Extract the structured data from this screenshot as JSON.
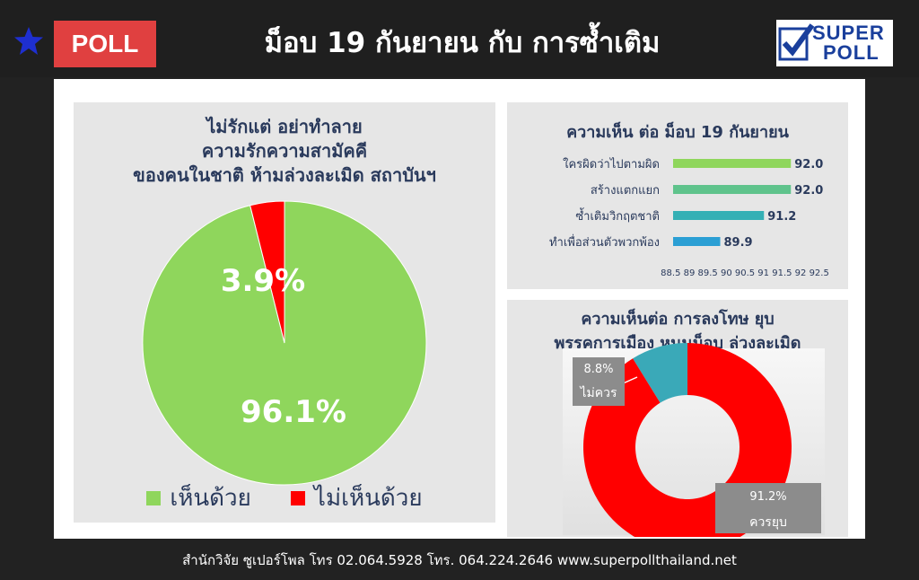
{
  "header": {
    "badge": "POLL",
    "title": "ม็อบ 19 กันยายน กับ การซ้ำเติม",
    "logo_line1": "SUPER",
    "logo_line2": "POLL"
  },
  "colors": {
    "green": "#8fd65c",
    "red": "#ff0000",
    "bar_green_light": "#8fd65c",
    "bar_green": "#5fc38c",
    "bar_teal": "#35b0b5",
    "bar_blue": "#2b9fd4",
    "donut_teal": "#3aa9b8"
  },
  "chart_data": [
    {
      "type": "pie",
      "title_lines": [
        "ไม่รักแต่ อย่าทำลาย",
        "ความรักความสามัคคี",
        "ของคนในชาติ ห้ามล่วงละเมิด สถาบันฯ"
      ],
      "categories": [
        "เห็นด้วย",
        "ไม่เห็นด้วย"
      ],
      "values": [
        96.1,
        3.9
      ],
      "labels": [
        "96.1%",
        "3.9%"
      ],
      "legend": "bottom"
    },
    {
      "type": "bar",
      "orientation": "horizontal",
      "title": "ความเห็น ต่อ ม็อบ 19 กันยายน",
      "categories": [
        "ใครผิดว่าไปตามผิด",
        "สร้างแตกแยก",
        "ซ้ำเติมวิกฤตชาติ",
        "ทำเพื่อส่วนตัวพวกพ้อง"
      ],
      "values": [
        92.0,
        92.0,
        91.2,
        89.9
      ],
      "value_labels": [
        "92.0",
        "92.0",
        "91.2",
        "89.9"
      ],
      "xlim": [
        88.5,
        92.5
      ],
      "ticks": [
        "88.5",
        "89",
        "89.5",
        "90",
        "90.5",
        "91",
        "91.5",
        "92",
        "92.5"
      ]
    },
    {
      "type": "pie",
      "style": "donut",
      "title_lines": [
        "ความเห็นต่อ การลงโทษ ยุบ",
        "พรรคการเมือง หนุนม็อบ ล่วงละเมิด"
      ],
      "categories": [
        "ไม่ควร",
        "ควรยุบ"
      ],
      "values": [
        8.8,
        91.2
      ],
      "labels": [
        "8.8%",
        "91.2%"
      ]
    }
  ],
  "footer": "สำนักวิจัย ซูเปอร์โพล โทร 02.064.5928  โทร. 064.224.2646 www.superpollthailand.net"
}
